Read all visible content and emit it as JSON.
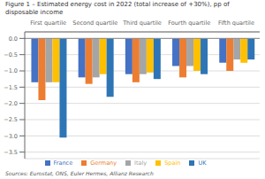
{
  "chart_data": {
    "type": "bar",
    "title": "Figure 1 – Estimated energy cost in 2022 (total increase of +30%), pp of\ndisposable income",
    "annotations": [
      "Sources: Eurostat, ONS, Euler Hermes, Allianz Research"
    ],
    "categories": [
      "First quartile",
      "Second quartile",
      "Third quartile",
      "Fourth quartile",
      "Fifth quartile"
    ],
    "series": [
      {
        "name": "France",
        "color": "#4472C4",
        "values": [
          -1.35,
          -1.2,
          -1.1,
          -0.85,
          -0.75
        ]
      },
      {
        "name": "Germany",
        "color": "#ED7D31",
        "values": [
          -1.9,
          -1.4,
          -1.35,
          -1.2,
          -1.0
        ]
      },
      {
        "name": "Italy",
        "color": "#A5A5A5",
        "values": [
          -1.35,
          -1.2,
          -1.1,
          -0.85,
          -0.65
        ]
      },
      {
        "name": "Spain",
        "color": "#FFC000",
        "values": [
          -1.35,
          -1.1,
          -1.05,
          -1.0,
          -0.75
        ]
      },
      {
        "name": "UK",
        "color": "#2E75B6",
        "values": [
          -3.05,
          -1.8,
          -1.25,
          -1.1,
          -0.65
        ]
      }
    ],
    "ylim": [
      -3.7,
      0.2
    ],
    "yticks": [
      {
        "value": 0.0,
        "label": "0.0"
      },
      {
        "value": -0.5,
        "label": "−0.5"
      },
      {
        "value": -1.0,
        "label": "−1.0"
      },
      {
        "value": -1.5,
        "label": "−1.5"
      },
      {
        "value": -2.0,
        "label": "−2.0"
      },
      {
        "value": -2.5,
        "label": "−2.5"
      },
      {
        "value": -3.0,
        "label": "−3.0"
      },
      {
        "value": -3.5,
        "label": "−3.5"
      }
    ],
    "grid": true,
    "legend": "bottom"
  }
}
